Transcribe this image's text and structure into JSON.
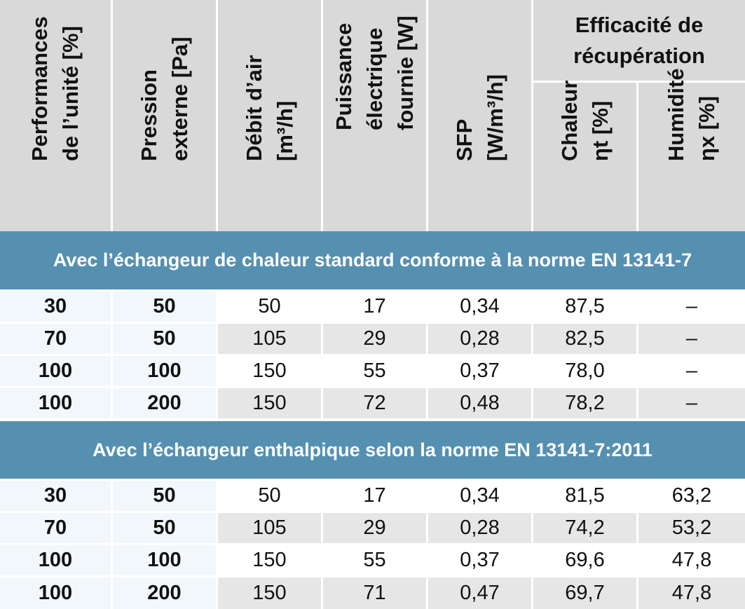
{
  "header": {
    "performances": [
      "Performances",
      "de l’unité [%]"
    ],
    "pression": [
      "Pression",
      "externe [Pa]"
    ],
    "debit": [
      "Débit d’air",
      "[m³/h]"
    ],
    "puissance": [
      "Puissance",
      "électrique",
      "fournie [W]"
    ],
    "sfp": [
      "SFP",
      "[W/m³/h]"
    ],
    "efficacite": [
      "Efficacité de",
      "récupération"
    ],
    "chaleur": [
      "Chaleur",
      "ηt [%]"
    ],
    "humidite": [
      "Humidité",
      "ηx [%]"
    ]
  },
  "sections": [
    {
      "title": "Avec l’échangeur de chaleur standard conforme à la norme EN 13141-7",
      "rows": [
        [
          "30",
          "50",
          "50",
          "17",
          "0,34",
          "87,5",
          "–"
        ],
        [
          "70",
          "50",
          "105",
          "29",
          "0,28",
          "82,5",
          "–"
        ],
        [
          "100",
          "100",
          "150",
          "55",
          "0,37",
          "78,0",
          "–"
        ],
        [
          "100",
          "200",
          "150",
          "72",
          "0,48",
          "78,2",
          "–"
        ]
      ]
    },
    {
      "title": "Avec l’échangeur enthalpique selon la norme EN 13141-7:2011",
      "rows": [
        [
          "30",
          "50",
          "50",
          "17",
          "0,34",
          "81,5",
          "63,2"
        ],
        [
          "70",
          "50",
          "105",
          "29",
          "0,28",
          "74,2",
          "53,2"
        ],
        [
          "100",
          "100",
          "150",
          "55",
          "0,37",
          "69,6",
          "47,8"
        ],
        [
          "100",
          "200",
          "150",
          "71",
          "0,47",
          "69,7",
          "47,8"
        ]
      ]
    }
  ]
}
